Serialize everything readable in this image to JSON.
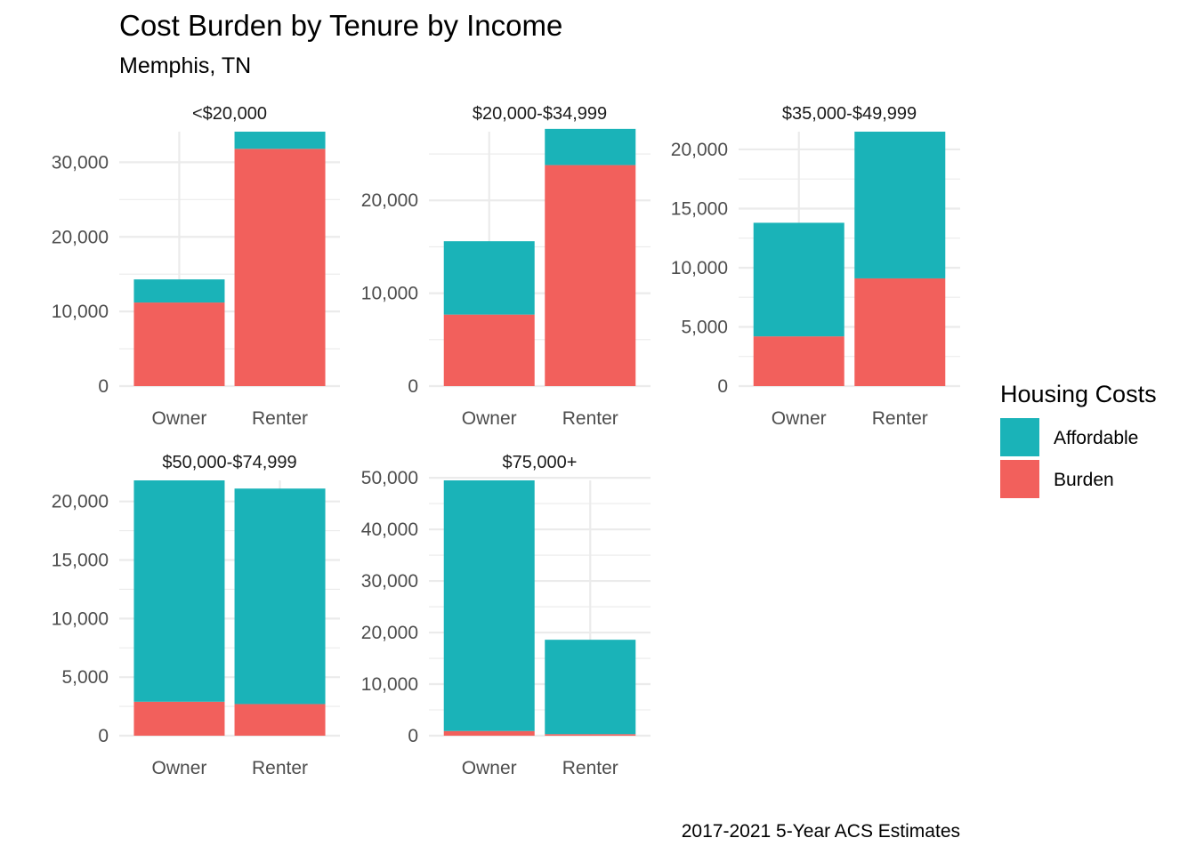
{
  "chart_data": {
    "type": "bar",
    "stacked": true,
    "title": "Cost Burden by Tenure by Income",
    "subtitle": "Memphis, TN",
    "caption": "2017-2021 5-Year ACS Estimates",
    "legend": {
      "title": "Housing Costs",
      "position": "right",
      "entries": [
        {
          "name": "Affordable",
          "color": "#1ab3b8"
        },
        {
          "name": "Burden",
          "color": "#f2605c"
        }
      ]
    },
    "grid": true,
    "categories": [
      "Owner",
      "Renter"
    ],
    "panels": [
      {
        "label": "<$20,000",
        "ylim": [
          0,
          34100
        ],
        "yticks": [
          0,
          10000,
          20000,
          30000
        ],
        "ytick_labels": [
          "0",
          "10,000",
          "20,000",
          "30,000"
        ],
        "series": [
          {
            "name": "Burden",
            "values": [
              11200,
              31800
            ]
          },
          {
            "name": "Affordable",
            "values": [
              3100,
              2300
            ]
          }
        ]
      },
      {
        "label": "$20,000-$34,999",
        "ylim": [
          0,
          27400
        ],
        "yticks": [
          0,
          10000,
          20000
        ],
        "ytick_labels": [
          "0",
          "10,000",
          "20,000"
        ],
        "series": [
          {
            "name": "Burden",
            "values": [
              7700,
              23800
            ]
          },
          {
            "name": "Affordable",
            "values": [
              7900,
              3900
            ]
          }
        ]
      },
      {
        "label": "$35,000-$49,999",
        "ylim": [
          0,
          21500
        ],
        "yticks": [
          0,
          5000,
          10000,
          15000,
          20000
        ],
        "ytick_labels": [
          "0",
          "5,000",
          "10,000",
          "15,000",
          "20,000"
        ],
        "series": [
          {
            "name": "Burden",
            "values": [
              4200,
              9100
            ]
          },
          {
            "name": "Affordable",
            "values": [
              9600,
              12400
            ]
          }
        ]
      },
      {
        "label": "$50,000-$74,999",
        "ylim": [
          0,
          21800
        ],
        "yticks": [
          0,
          5000,
          10000,
          15000,
          20000
        ],
        "ytick_labels": [
          "0",
          "5,000",
          "10,000",
          "15,000",
          "20,000"
        ],
        "series": [
          {
            "name": "Burden",
            "values": [
              2900,
              2700
            ]
          },
          {
            "name": "Affordable",
            "values": [
              18900,
              18400
            ]
          }
        ]
      },
      {
        "label": "$75,000+",
        "ylim": [
          0,
          49500
        ],
        "yticks": [
          0,
          10000,
          20000,
          30000,
          40000,
          50000
        ],
        "ytick_labels": [
          "0",
          "10,000",
          "20,000",
          "30,000",
          "40,000",
          "50,000"
        ],
        "series": [
          {
            "name": "Burden",
            "values": [
              900,
              300
            ]
          },
          {
            "name": "Affordable",
            "values": [
              48600,
              18300
            ]
          }
        ]
      }
    ]
  }
}
